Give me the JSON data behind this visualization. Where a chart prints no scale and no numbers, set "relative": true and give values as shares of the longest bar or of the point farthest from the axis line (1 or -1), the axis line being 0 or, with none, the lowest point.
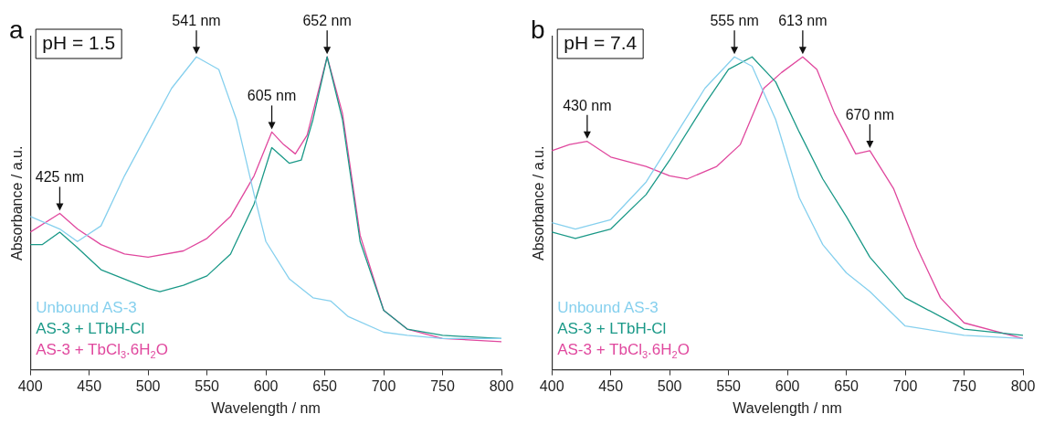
{
  "chart_data": [
    {
      "type": "line",
      "title": "a",
      "subtitle": "pH = 1.5",
      "xlabel": "Wavelength / nm",
      "ylabel": "Absorbance / a.u.",
      "relative": true,
      "xlim": [
        400,
        800
      ],
      "xticks": [
        400,
        450,
        500,
        550,
        600,
        650,
        700,
        750,
        800
      ],
      "grid": false,
      "legend": "bottom left",
      "marker": "none",
      "line_style": "solid",
      "annotations": [
        {
          "text": "425 nm",
          "x": 425,
          "y": 0.5
        },
        {
          "text": "541 nm",
          "x": 541,
          "y": 1.0
        },
        {
          "text": "605 nm",
          "x": 605,
          "y": 0.76
        },
        {
          "text": "652 nm",
          "x": 652,
          "y": 1.0
        }
      ],
      "series": [
        {
          "name": "Unbound AS-3",
          "color": "#86d0ee",
          "x": [
            400,
            425,
            440,
            460,
            480,
            500,
            520,
            541,
            560,
            575,
            590,
            600,
            620,
            640,
            655,
            670,
            700,
            720,
            750,
            800
          ],
          "values": [
            0.49,
            0.45,
            0.41,
            0.46,
            0.62,
            0.76,
            0.9,
            1.0,
            0.96,
            0.8,
            0.56,
            0.41,
            0.29,
            0.23,
            0.22,
            0.17,
            0.12,
            0.11,
            0.1,
            0.1
          ]
        },
        {
          "name": "AS-3 + LTbH-Cl",
          "color": "#1b9988",
          "x": [
            400,
            410,
            425,
            440,
            460,
            480,
            500,
            510,
            530,
            550,
            570,
            590,
            605,
            620,
            630,
            640,
            652,
            665,
            680,
            700,
            720,
            750,
            800
          ],
          "values": [
            0.4,
            0.4,
            0.44,
            0.39,
            0.32,
            0.29,
            0.26,
            0.25,
            0.27,
            0.3,
            0.37,
            0.53,
            0.71,
            0.66,
            0.67,
            0.8,
            1.0,
            0.8,
            0.41,
            0.19,
            0.13,
            0.11,
            0.1
          ]
        },
        {
          "name": "AS-3 + TbCl$_{3}$.6H$_{2}$O",
          "color": "#e0489e",
          "x": [
            400,
            425,
            440,
            460,
            480,
            500,
            530,
            550,
            570,
            590,
            605,
            615,
            625,
            635,
            652,
            665,
            680,
            700,
            720,
            750,
            800
          ],
          "values": [
            0.44,
            0.5,
            0.45,
            0.4,
            0.37,
            0.36,
            0.38,
            0.42,
            0.49,
            0.62,
            0.76,
            0.72,
            0.69,
            0.75,
            1.0,
            0.82,
            0.43,
            0.19,
            0.13,
            0.1,
            0.09
          ]
        }
      ]
    },
    {
      "type": "line",
      "title": "b",
      "subtitle": "pH = 7.4",
      "xlabel": "Wavelength / nm",
      "ylabel": "Absorbance / a.u.",
      "relative": true,
      "xlim": [
        400,
        800
      ],
      "xticks": [
        400,
        450,
        500,
        550,
        600,
        650,
        700,
        750,
        800
      ],
      "grid": false,
      "legend": "bottom left",
      "marker": "none",
      "line_style": "solid",
      "annotations": [
        {
          "text": "430 nm",
          "x": 430,
          "y": 0.73
        },
        {
          "text": "555 nm",
          "x": 555,
          "y": 1.0
        },
        {
          "text": "613 nm",
          "x": 613,
          "y": 1.0
        },
        {
          "text": "670 nm",
          "x": 670,
          "y": 0.7
        }
      ],
      "series": [
        {
          "name": "Unbound AS-3",
          "color": "#86d0ee",
          "x": [
            400,
            420,
            450,
            480,
            500,
            530,
            555,
            570,
            590,
            610,
            630,
            650,
            670,
            700,
            750,
            800
          ],
          "values": [
            0.47,
            0.45,
            0.48,
            0.6,
            0.72,
            0.9,
            1.0,
            0.97,
            0.8,
            0.55,
            0.4,
            0.31,
            0.25,
            0.14,
            0.11,
            0.1
          ]
        },
        {
          "name": "AS-3 + LTbH-Cl",
          "color": "#1b9988",
          "x": [
            400,
            420,
            450,
            480,
            500,
            530,
            550,
            570,
            590,
            610,
            630,
            650,
            670,
            700,
            750,
            800
          ],
          "values": [
            0.44,
            0.42,
            0.45,
            0.56,
            0.67,
            0.85,
            0.96,
            1.0,
            0.92,
            0.76,
            0.61,
            0.49,
            0.36,
            0.23,
            0.13,
            0.11
          ]
        },
        {
          "name": "AS-3 + TbCl$_{3}$.6H$_{2}$O",
          "color": "#e0489e",
          "x": [
            400,
            415,
            430,
            450,
            480,
            500,
            515,
            540,
            560,
            580,
            595,
            613,
            625,
            640,
            658,
            670,
            690,
            710,
            730,
            750,
            800
          ],
          "values": [
            0.7,
            0.72,
            0.73,
            0.68,
            0.65,
            0.62,
            0.61,
            0.65,
            0.72,
            0.9,
            0.95,
            1.0,
            0.96,
            0.82,
            0.69,
            0.7,
            0.58,
            0.39,
            0.23,
            0.15,
            0.1
          ]
        }
      ]
    }
  ]
}
